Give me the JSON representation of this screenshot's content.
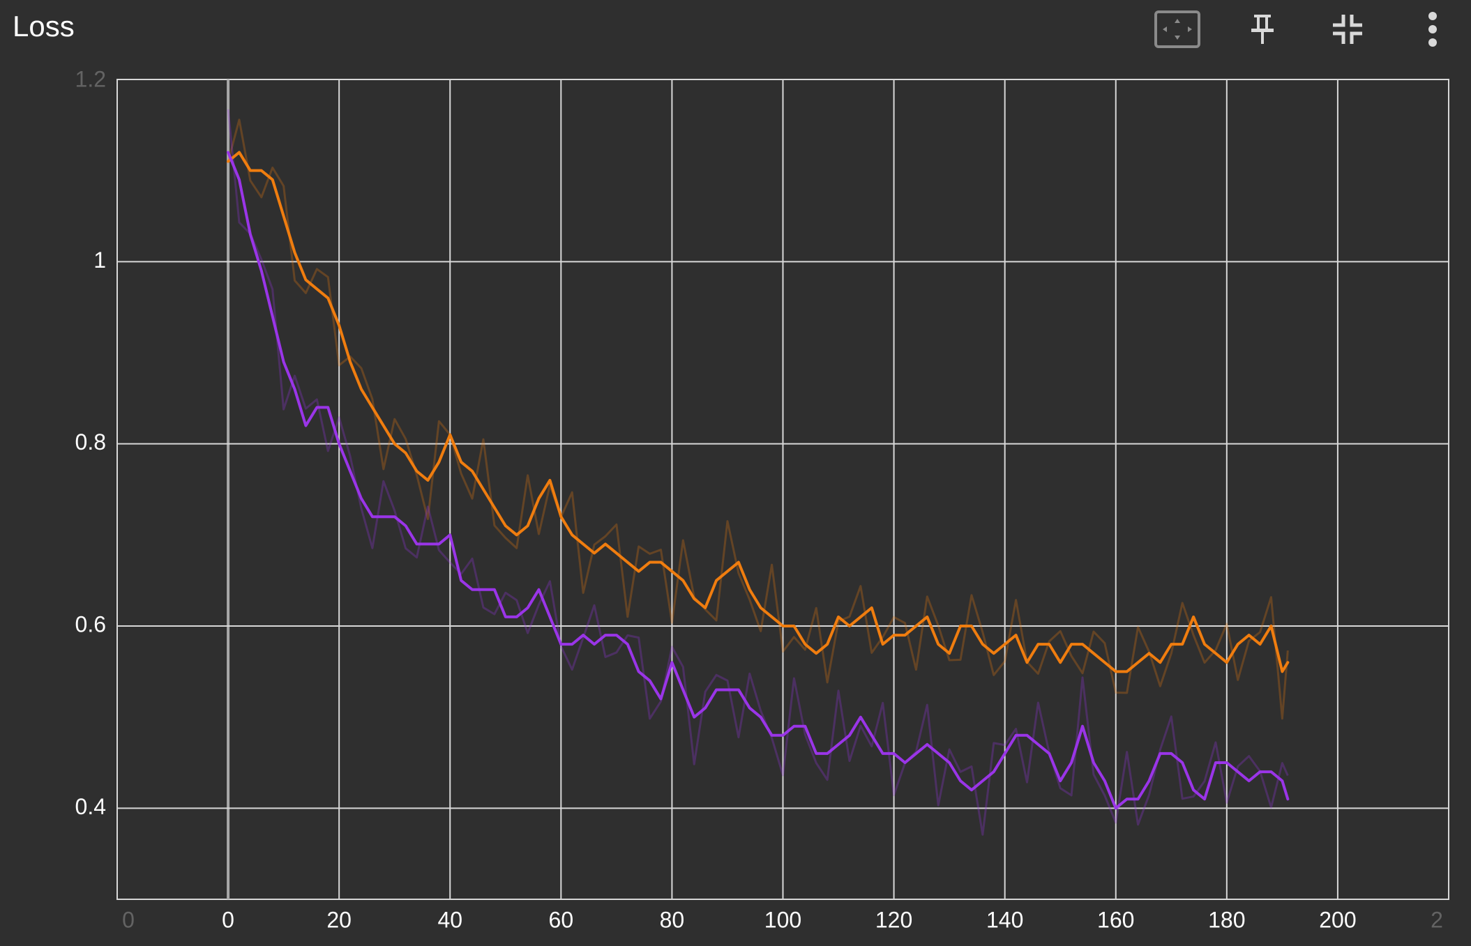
{
  "header": {
    "title": "Loss",
    "tools": [
      {
        "icon": "fit-domain-icon"
      },
      {
        "icon": "pin-icon"
      },
      {
        "icon": "collapse-icon"
      },
      {
        "icon": "more-vert-icon"
      }
    ]
  },
  "colors": {
    "background": "#2f2f2f",
    "grid": "#d8d8d8",
    "series_orange": "#f07d0f",
    "series_purple": "#9a35e8"
  },
  "chart_data": {
    "type": "line",
    "title": "Loss",
    "xlabel": "",
    "ylabel": "",
    "xlim": [
      -20,
      220
    ],
    "ylim": [
      0.3,
      1.2
    ],
    "x_ticks": [
      0,
      20,
      40,
      60,
      80,
      100,
      120,
      140,
      160,
      180,
      200
    ],
    "x_ticks_faint": [
      "0",
      "2"
    ],
    "y_ticks": [
      0.4,
      0.6,
      0.8,
      1.0
    ],
    "y_tick_labels": [
      "0.4",
      "0.6",
      "0.8",
      "1"
    ],
    "y_tick_faint": "1.2",
    "grid": true,
    "smoothed": true,
    "series": [
      {
        "color": "#f07d0f",
        "x": [
          0,
          2,
          4,
          6,
          8,
          10,
          12,
          14,
          16,
          18,
          20,
          22,
          24,
          26,
          28,
          30,
          32,
          34,
          36,
          38,
          40,
          42,
          44,
          46,
          48,
          50,
          52,
          54,
          56,
          58,
          60,
          62,
          64,
          66,
          68,
          70,
          72,
          74,
          76,
          78,
          80,
          82,
          84,
          86,
          88,
          90,
          92,
          94,
          96,
          98,
          100,
          102,
          104,
          106,
          108,
          110,
          112,
          114,
          116,
          118,
          120,
          122,
          124,
          126,
          128,
          130,
          132,
          134,
          136,
          138,
          140,
          142,
          144,
          146,
          148,
          150,
          152,
          154,
          156,
          158,
          160,
          162,
          164,
          166,
          168,
          170,
          172,
          174,
          176,
          178,
          180,
          182,
          184,
          186,
          188,
          190,
          191
        ],
        "y": [
          1.11,
          1.12,
          1.1,
          1.1,
          1.09,
          1.05,
          1.01,
          0.98,
          0.97,
          0.96,
          0.93,
          0.89,
          0.86,
          0.84,
          0.82,
          0.8,
          0.79,
          0.77,
          0.76,
          0.78,
          0.81,
          0.78,
          0.77,
          0.75,
          0.73,
          0.71,
          0.7,
          0.71,
          0.74,
          0.76,
          0.72,
          0.7,
          0.69,
          0.68,
          0.69,
          0.68,
          0.67,
          0.66,
          0.67,
          0.67,
          0.66,
          0.65,
          0.63,
          0.62,
          0.65,
          0.66,
          0.67,
          0.64,
          0.62,
          0.61,
          0.6,
          0.6,
          0.58,
          0.57,
          0.58,
          0.61,
          0.6,
          0.61,
          0.62,
          0.58,
          0.59,
          0.59,
          0.6,
          0.61,
          0.58,
          0.57,
          0.6,
          0.6,
          0.58,
          0.57,
          0.58,
          0.59,
          0.56,
          0.58,
          0.58,
          0.56,
          0.58,
          0.58,
          0.57,
          0.56,
          0.55,
          0.55,
          0.56,
          0.57,
          0.56,
          0.58,
          0.58,
          0.61,
          0.58,
          0.57,
          0.56,
          0.58,
          0.59,
          0.58,
          0.6,
          0.55,
          0.56
        ]
      },
      {
        "color": "#9a35e8",
        "x": [
          0,
          2,
          4,
          6,
          8,
          10,
          12,
          14,
          16,
          18,
          20,
          22,
          24,
          26,
          28,
          30,
          32,
          34,
          36,
          38,
          40,
          42,
          44,
          46,
          48,
          50,
          52,
          54,
          56,
          58,
          60,
          62,
          64,
          66,
          68,
          70,
          72,
          74,
          76,
          78,
          80,
          82,
          84,
          86,
          88,
          90,
          92,
          94,
          96,
          98,
          100,
          102,
          104,
          106,
          108,
          110,
          112,
          114,
          116,
          118,
          120,
          122,
          124,
          126,
          128,
          130,
          132,
          134,
          136,
          138,
          140,
          142,
          144,
          146,
          148,
          150,
          152,
          154,
          156,
          158,
          160,
          162,
          164,
          166,
          168,
          170,
          172,
          174,
          176,
          178,
          180,
          182,
          184,
          186,
          188,
          190,
          191
        ],
        "y": [
          1.12,
          1.09,
          1.03,
          0.99,
          0.94,
          0.89,
          0.86,
          0.82,
          0.84,
          0.84,
          0.8,
          0.77,
          0.74,
          0.72,
          0.72,
          0.72,
          0.71,
          0.69,
          0.69,
          0.69,
          0.7,
          0.65,
          0.64,
          0.64,
          0.64,
          0.61,
          0.61,
          0.62,
          0.64,
          0.61,
          0.58,
          0.58,
          0.59,
          0.58,
          0.59,
          0.59,
          0.58,
          0.55,
          0.54,
          0.52,
          0.56,
          0.53,
          0.5,
          0.51,
          0.53,
          0.53,
          0.53,
          0.51,
          0.5,
          0.48,
          0.48,
          0.49,
          0.49,
          0.46,
          0.46,
          0.47,
          0.48,
          0.5,
          0.48,
          0.46,
          0.46,
          0.45,
          0.46,
          0.47,
          0.46,
          0.45,
          0.43,
          0.42,
          0.43,
          0.44,
          0.46,
          0.48,
          0.48,
          0.47,
          0.46,
          0.43,
          0.45,
          0.49,
          0.45,
          0.43,
          0.4,
          0.41,
          0.41,
          0.43,
          0.46,
          0.46,
          0.45,
          0.42,
          0.41,
          0.45,
          0.45,
          0.44,
          0.43,
          0.44,
          0.44,
          0.43,
          0.41
        ]
      }
    ]
  }
}
